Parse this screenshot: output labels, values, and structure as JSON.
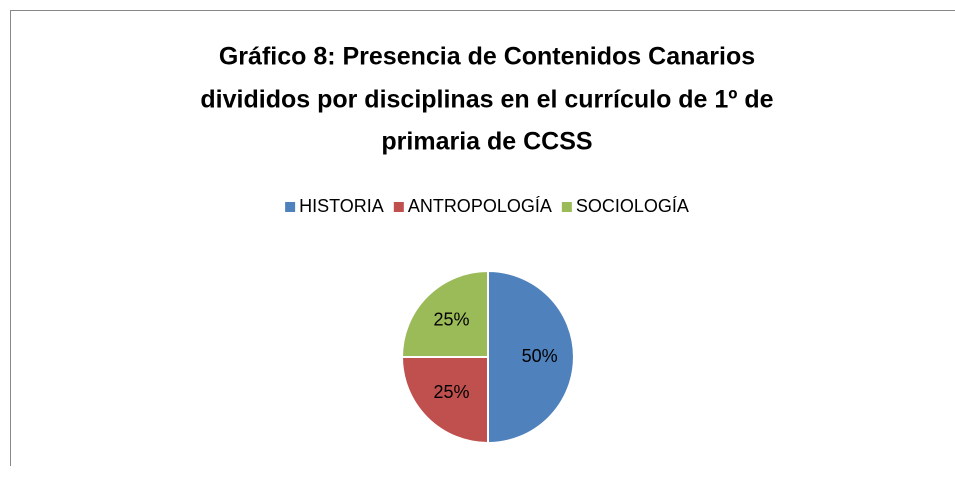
{
  "chart_data": {
    "type": "pie",
    "title": [
      "Gráfico 8: Presencia de Contenidos Canarios",
      "divididos por disciplinas en el currículo de 1º de",
      "primaria de CCSS"
    ],
    "categories": [
      "HISTORIA",
      "ANTROPOLOGÍA",
      "SOCIOLOGÍA"
    ],
    "values": [
      50,
      25,
      25
    ],
    "value_labels": [
      "50%",
      "25%",
      "25%"
    ],
    "colors": [
      "#4f81bd",
      "#c0504d",
      "#9bbb59"
    ],
    "legend": "top"
  }
}
